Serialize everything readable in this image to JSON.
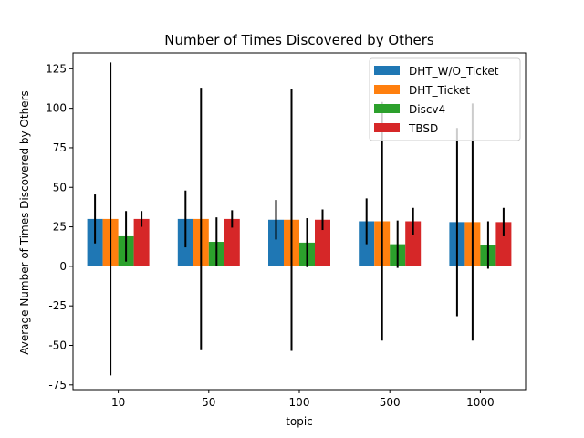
{
  "chart_data": {
    "type": "bar",
    "title": "Number of Times Discovered by Others",
    "xlabel": "topic",
    "ylabel": "Average Number of Times Discovered by Others",
    "categories": [
      "10",
      "50",
      "100",
      "500",
      "1000"
    ],
    "ylim": [
      -78,
      135
    ],
    "yticks": [
      -75,
      -50,
      -25,
      0,
      25,
      50,
      75,
      100,
      125
    ],
    "legend_position": "top-right",
    "series": [
      {
        "name": "DHT_W/O_Ticket",
        "color": "#1f77b4",
        "values": [
          30,
          30,
          29.5,
          28.5,
          28
        ],
        "errors": [
          15.5,
          18,
          12.5,
          14.5,
          59.5
        ]
      },
      {
        "name": "DHT_Ticket",
        "color": "#ff7f0e",
        "values": [
          30,
          30,
          29.5,
          28.5,
          28
        ],
        "errors": [
          99,
          83,
          83,
          75.5,
          75
        ]
      },
      {
        "name": "Discv4",
        "color": "#2ca02c",
        "values": [
          19,
          15.5,
          15,
          14,
          13.5
        ],
        "errors": [
          16,
          15.5,
          15.5,
          15,
          15
        ]
      },
      {
        "name": "TBSD",
        "color": "#d62728",
        "values": [
          30,
          30,
          29.5,
          28.5,
          28
        ],
        "errors": [
          5,
          5.5,
          6.5,
          8.5,
          9
        ]
      }
    ]
  }
}
